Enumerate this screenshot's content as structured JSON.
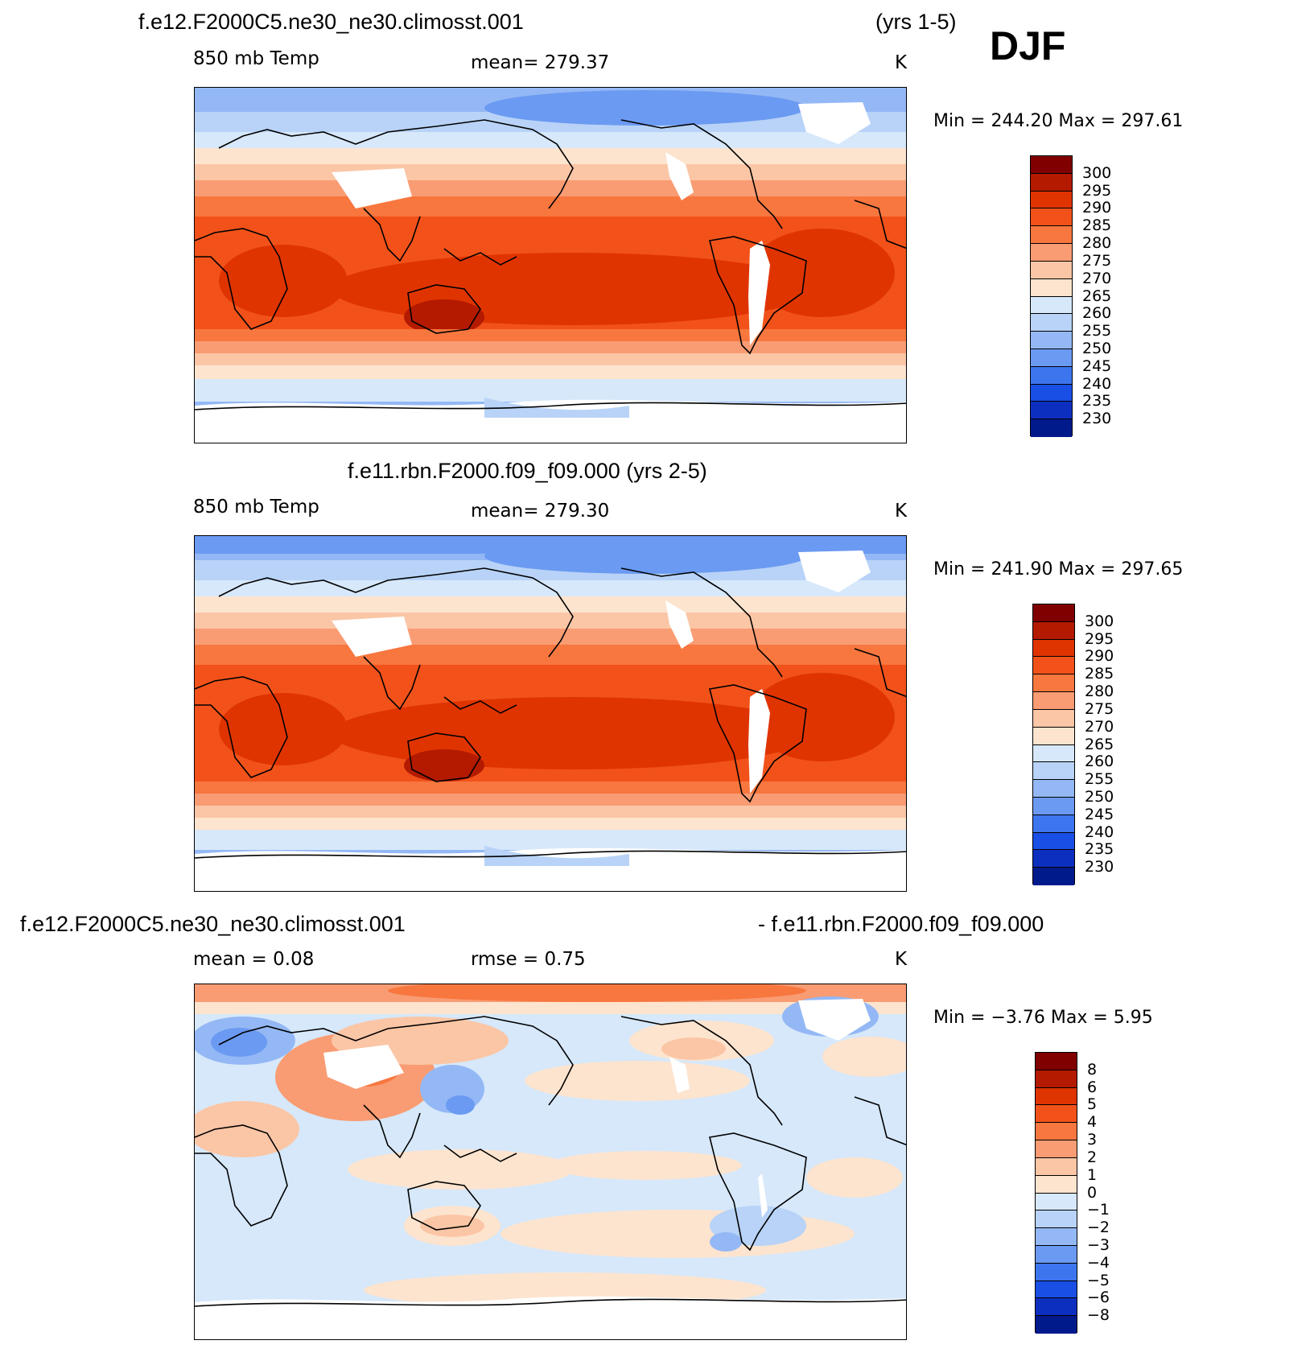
{
  "season": "DJF",
  "panels": [
    {
      "title_left": "f.e12.F2000C5.ne30_ne30.climosst.001",
      "title_right": "(yrs 1-5)",
      "left_label": "850  mb  Temp",
      "center_label": "mean=  279.37",
      "units": "K",
      "minmax": "Min  =  244.20  Max  =  297.61"
    },
    {
      "title_center": "f.e11.rbn.F2000.f09_f09.000 (yrs 2-5)",
      "left_label": "850  mb  Temp",
      "center_label": "mean=  279.30",
      "units": "K",
      "minmax": "Min  =  241.90  Max  =  297.65"
    },
    {
      "title_left": "f.e12.F2000C5.ne30_ne30.climosst.001",
      "title_right": "- f.e11.rbn.F2000.f09_f09.000",
      "left_label": "mean  =     0.08",
      "center_label": "rmse  =     0.75",
      "units": "K",
      "minmax": "Min  =    −3.76  Max  =      5.95"
    }
  ],
  "colorbar_abs": {
    "labels": [
      "300",
      "295",
      "290",
      "285",
      "280",
      "275",
      "270",
      "265",
      "260",
      "255",
      "250",
      "245",
      "240",
      "235",
      "230"
    ],
    "colors": [
      "#800000",
      "#b31a00",
      "#e03400",
      "#f2521a",
      "#f7773f",
      "#f99c73",
      "#fbc6a6",
      "#fde4cf",
      "#d6e8fa",
      "#b8d3f7",
      "#94b8f5",
      "#6b9af2",
      "#3d75ef",
      "#1a4fe6",
      "#0d2fc0",
      "#001a8c"
    ]
  },
  "colorbar_diff": {
    "labels": [
      "8",
      "6",
      "5",
      "4",
      "3",
      "2",
      "1",
      "0",
      "−1",
      "−2",
      "−3",
      "−4",
      "−5",
      "−6",
      "−8"
    ],
    "colors": [
      "#800000",
      "#b31a00",
      "#e03400",
      "#f2521a",
      "#f7773f",
      "#f99c73",
      "#fbc6a6",
      "#fde4cf",
      "#d6e8fa",
      "#b8d3f7",
      "#94b8f5",
      "#6b9af2",
      "#3d75ef",
      "#1a4fe6",
      "#0d2fc0",
      "#001a8c"
    ]
  }
}
